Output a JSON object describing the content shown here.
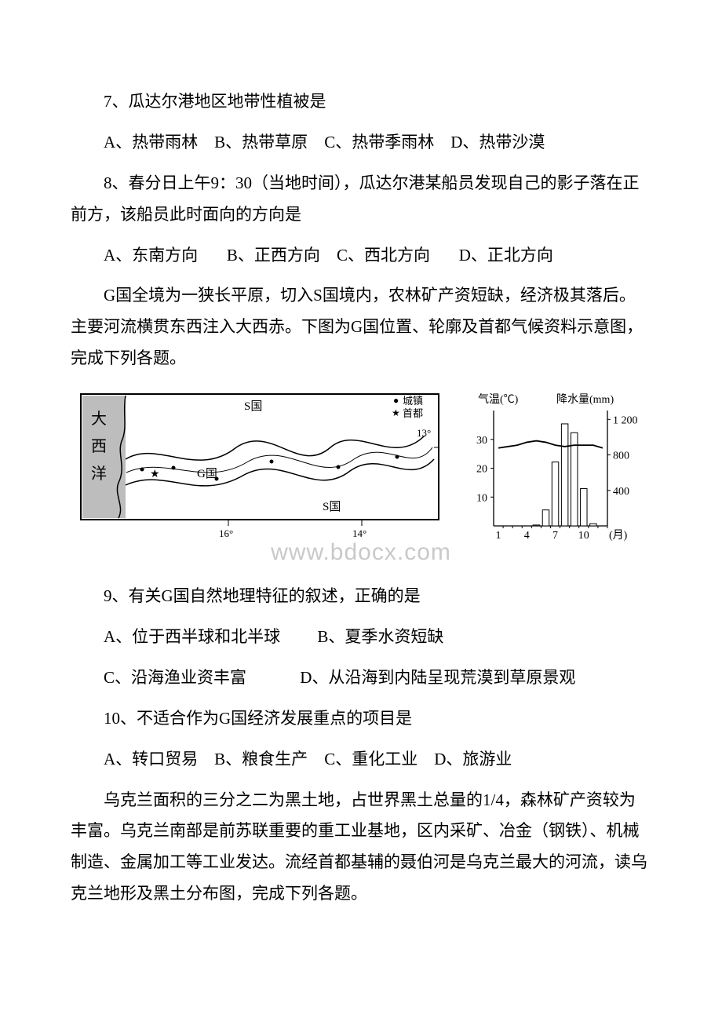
{
  "q7": {
    "text": "7、瓜达尔港地区地带性植被是",
    "a": "A、热带雨林",
    "b": "B、热带草原",
    "c": "C、热带季雨林",
    "d": "D、热带沙漠"
  },
  "q8": {
    "text": "8、春分日上午9：30（当地时间），瓜达尔港某船员发现自己的影子落在正前方，该船员此时面向的方向是",
    "a": "A、东南方向",
    "b": "B、正西方向",
    "c": "C、西北方向",
    "d": "D、正北方向"
  },
  "passage_g": "G国全境为一狭长平原，切入S国境内，农林矿产资短缺，经济极其落后。主要河流横贯东西注入大西赤。下图为G国位置、轮廓及首都气候资料示意图，完成下列各题。",
  "map": {
    "ocean_label": "大\n西\n洋",
    "s_top": "S国",
    "s_bottom": "S国",
    "g_label": "G国",
    "lon16": "16°",
    "lon14": "14°",
    "lat13": "13°",
    "legend_town": "城镇",
    "legend_cap": "首都",
    "legend_town_marker": "●",
    "legend_cap_marker": "★",
    "border_color": "#000000",
    "river_color": "#000000",
    "gray_fill": "#bdbdbd",
    "land_fill": "#ffffff",
    "font_size": 15
  },
  "chart": {
    "axis_left_label": "气温(℃)",
    "axis_right_label": "降水量(mm)",
    "axis_right_title_fontsize": 14,
    "x_label": "(月)",
    "left_ticks": [
      10,
      20,
      30
    ],
    "right_ticks": [
      400,
      800,
      1200
    ],
    "x_ticks": [
      1,
      4,
      7,
      10
    ],
    "temp_line": [
      27,
      27.5,
      28,
      29,
      29.5,
      29,
      28,
      27.5,
      28,
      28,
      28,
      27
    ],
    "rain_bars": [
      0,
      0,
      0,
      0,
      10,
      180,
      720,
      1150,
      1050,
      420,
      25,
      0
    ],
    "left_min": 0,
    "left_max": 40,
    "right_min": 0,
    "right_max": 1300,
    "axis_color": "#000000",
    "bar_fill": "#ffffff",
    "bar_stroke": "#000000",
    "line_color": "#000000",
    "font_size": 14
  },
  "q9": {
    "text": "9、有关G国自然地理特征的叙述，正确的是",
    "a": "A、位于西半球和北半球",
    "b": "B、夏季水资短缺",
    "c": "C、沿海渔业资丰富",
    "d": "D、从沿海到内陆呈现荒漠到草原景观"
  },
  "q10": {
    "text": "10、不适合作为G国经济发展重点的项目是",
    "a": "A、转口贸易",
    "b": "B、粮食生产",
    "c": "C、重化工业",
    "d": "D、旅游业"
  },
  "passage_u": "乌克兰面积的三分之二为黑土地，占世界黑土总量的1/4，森林矿产资较为丰富。乌克兰南部是前苏联重要的重工业基地，区内采矿、冶金（钢铁）、机械制造、金属加工等工业发达。流经首都基辅的聂伯河是乌克兰最大的河流，读乌克兰地形及黑土分布图，完成下列各题。",
  "watermark": "www.bdocx.com"
}
